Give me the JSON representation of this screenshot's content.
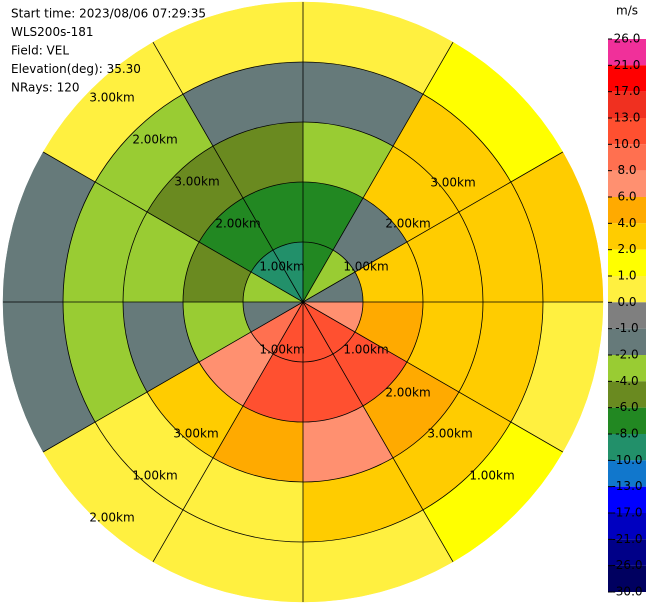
{
  "chart_data": {
    "type": "ppi",
    "header": [
      "Start time: 2023/08/06 07:29:35",
      "WLS200s-181",
      "Field: VEL",
      "Elevation(deg): 35.30",
      "NRays: 120"
    ],
    "rlim": [
      0,
      5
    ],
    "rings": [
      1,
      2,
      3,
      4
    ],
    "spoke_step_deg": 30,
    "ring_labels": [
      "3.00km",
      "2.00km",
      "3.00km",
      "2.00km",
      "1.00km",
      "1.00km",
      "2.00km",
      "3.00km",
      "1.00km",
      "1.00km",
      "2.00km",
      "3.00km",
      "3.00km",
      "1.00km",
      "2.00km",
      "1.00km"
    ],
    "azimuths": [
      0,
      30,
      60,
      90,
      120,
      150,
      180,
      210,
      240,
      270,
      300,
      330
    ],
    "range_bins": [
      0,
      1,
      2,
      3,
      4,
      5
    ],
    "values": [
      [
        -8,
        -4,
        -2,
        6,
        10,
        10,
        10,
        8,
        -2,
        -4,
        -10,
        -10
      ],
      [
        -8,
        -2,
        2,
        4,
        10,
        10,
        10,
        6,
        -4,
        -6,
        -8,
        -8
      ],
      [
        -4,
        2,
        2,
        2,
        4,
        6,
        4,
        2,
        -2,
        -4,
        -6,
        -6
      ],
      [
        -2,
        2,
        2,
        2,
        2,
        2,
        0,
        0,
        -4,
        -4,
        -4,
        -2
      ],
      [
        0,
        1,
        2,
        0,
        1,
        0,
        0,
        0,
        -2,
        -2,
        0,
        0
      ]
    ],
    "colorbar": {
      "title": "m/s",
      "ticks": [
        {
          "value": 26,
          "label": "26.0"
        },
        {
          "value": 21,
          "label": "21.0"
        },
        {
          "value": 17,
          "label": "17.0"
        },
        {
          "value": 13,
          "label": "13.0"
        },
        {
          "value": 10,
          "label": "10.0"
        },
        {
          "value": 8,
          "label": "8.0"
        },
        {
          "value": 6,
          "label": "6.0"
        },
        {
          "value": 4,
          "label": "4.0"
        },
        {
          "value": 2,
          "label": "2.0"
        },
        {
          "value": 1,
          "label": "1.0"
        },
        {
          "value": 0,
          "label": "0.0"
        },
        {
          "value": -1,
          "label": "-1.0"
        },
        {
          "value": -2,
          "label": "-2.0"
        },
        {
          "value": -4,
          "label": "-4.0"
        },
        {
          "value": -6,
          "label": "-6.0"
        },
        {
          "value": -8,
          "label": "-8.0"
        },
        {
          "value": -10,
          "label": "-10.0"
        },
        {
          "value": -13,
          "label": "-13.0"
        },
        {
          "value": -17,
          "label": "-17.0"
        },
        {
          "value": -21,
          "label": "-21.0"
        },
        {
          "value": -26,
          "label": "-26.0"
        },
        {
          "value": -30,
          "label": "-30.0"
        }
      ],
      "colors": [
        "#f0309a",
        "#ff0000",
        "#f03020",
        "#ff5030",
        "#ff7050",
        "#ff9070",
        "#ffaa00",
        "#ffcc00",
        "#ffff00",
        "#fff040",
        "#7f7f7f",
        "#667a7a",
        "#99cc33",
        "#6a8a20",
        "#228822",
        "#22906a",
        "#1177cc",
        "#0000ff",
        "#0000c0",
        "#000088",
        "#000060"
      ]
    }
  }
}
